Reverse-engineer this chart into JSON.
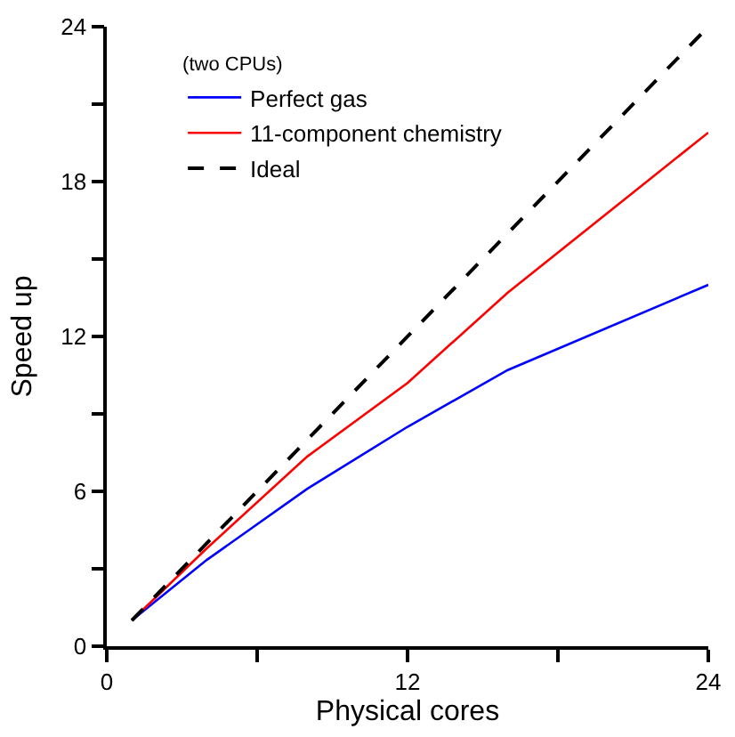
{
  "chart_data": {
    "type": "line",
    "xlabel": "Physical cores",
    "ylabel": "Speed up",
    "legend_title": "(two CPUs)",
    "x": [
      1,
      4,
      8,
      12,
      16,
      24
    ],
    "series": [
      {
        "name": "Perfect gas",
        "color": "#0000ff",
        "values": [
          1,
          3.35,
          6.1,
          8.5,
          10.7,
          14.0
        ]
      },
      {
        "name": "11-component chemistry",
        "color": "#ff0000",
        "values": [
          1,
          3.8,
          7.35,
          10.2,
          13.7,
          19.9
        ]
      },
      {
        "name": "Ideal",
        "color": "#000000",
        "line_style": "dashed",
        "x": [
          1,
          24
        ],
        "values": [
          1,
          24
        ]
      }
    ],
    "xlim": [
      0,
      24
    ],
    "ylim": [
      0,
      24
    ],
    "xticks": [
      0,
      {
        "value": 6,
        "label": null
      },
      12,
      {
        "value": 18,
        "label": null
      },
      24
    ],
    "yticks": [
      0,
      {
        "value": 3,
        "label": null
      },
      6,
      {
        "value": 9,
        "label": null
      },
      12,
      {
        "value": 15,
        "label": null
      },
      18,
      {
        "value": 21,
        "label": null
      },
      24
    ],
    "grid": false,
    "legend": "top left",
    "marker": "none",
    "line_style": "solid"
  }
}
